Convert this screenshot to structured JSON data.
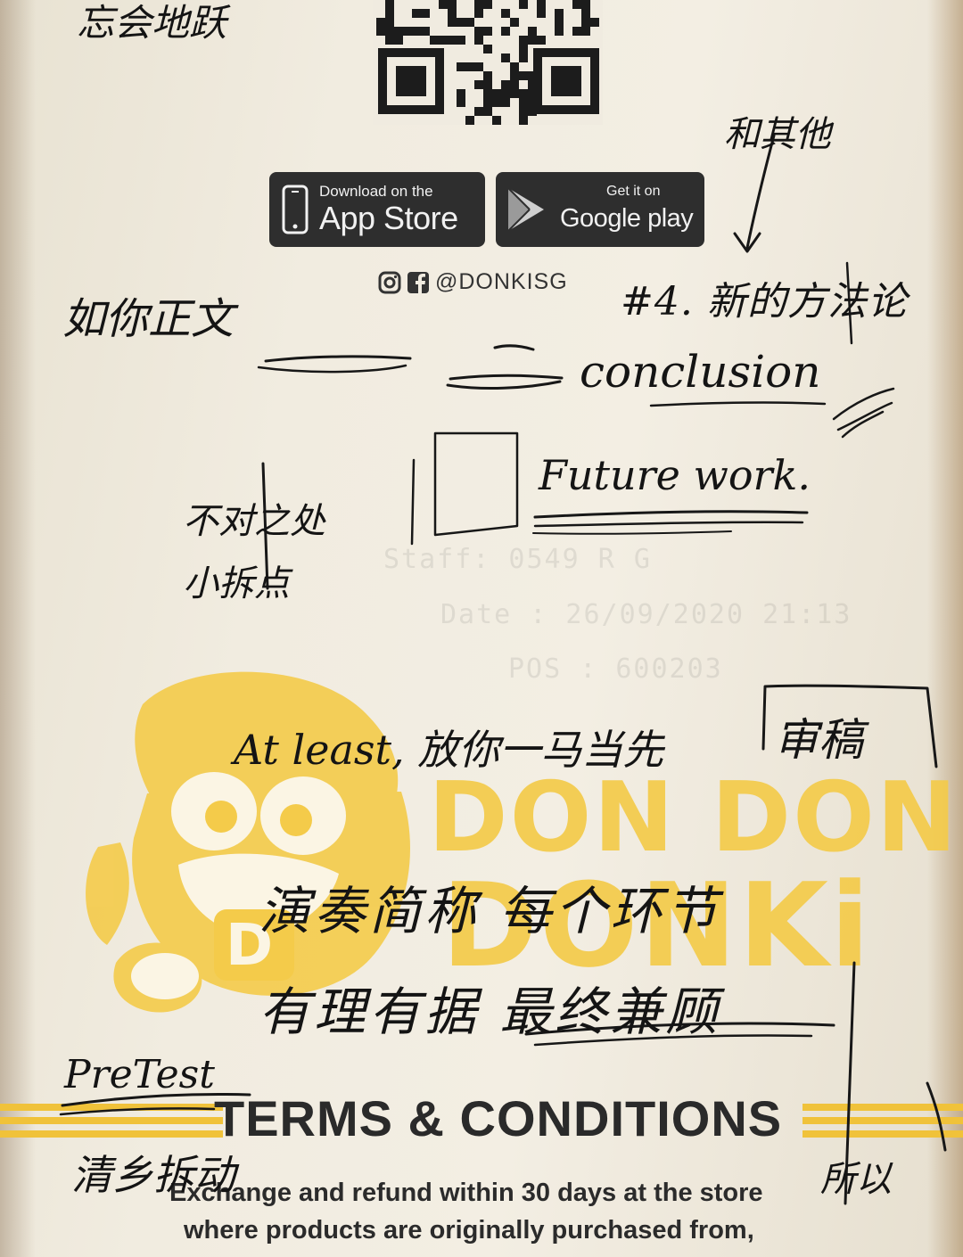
{
  "badges": {
    "apple": {
      "small": "Download on the",
      "big": "App Store"
    },
    "google": {
      "small": "Get it on",
      "big": "Google play"
    }
  },
  "social": {
    "handle": "@DONKISG"
  },
  "faded_receipt": {
    "staff": "Staff: 0549 R G",
    "date": "Date : 26/09/2020 21:13",
    "pos": "POS : 600203"
  },
  "brand": {
    "line1": "DON DON",
    "line2": "DONKi"
  },
  "terms": {
    "title": "TERMS & CONDITIONS",
    "line1": "Exchange and refund within 30 days at the store",
    "line2": "where products are originally purchased from,"
  },
  "handwriting": {
    "top_left": "忘会地跃",
    "and_others": "和其他",
    "formal_paper": "如你正文",
    "section4": "#4. 新的方法论",
    "conclusion": "conclusion",
    "future_work": "Future work.",
    "limitations": "不对之处 小拆点",
    "at_least": "At least, 放你一马当先",
    "review": "审稿",
    "middle1": "演奏简称 每个环节",
    "middle2": "有理有据 最终兼顾",
    "pretest": "PreTest",
    "bottom_left": "清乡拆动",
    "bottom_right": "所以"
  },
  "colors": {
    "brand_yellow": "#f4cb4a",
    "ink": "#171717",
    "badge": "#2e2e2e"
  },
  "icons": [
    "qr-code-icon",
    "apple-phone-icon",
    "google-play-icon",
    "instagram-icon",
    "facebook-icon",
    "donki-mascot-icon"
  ]
}
